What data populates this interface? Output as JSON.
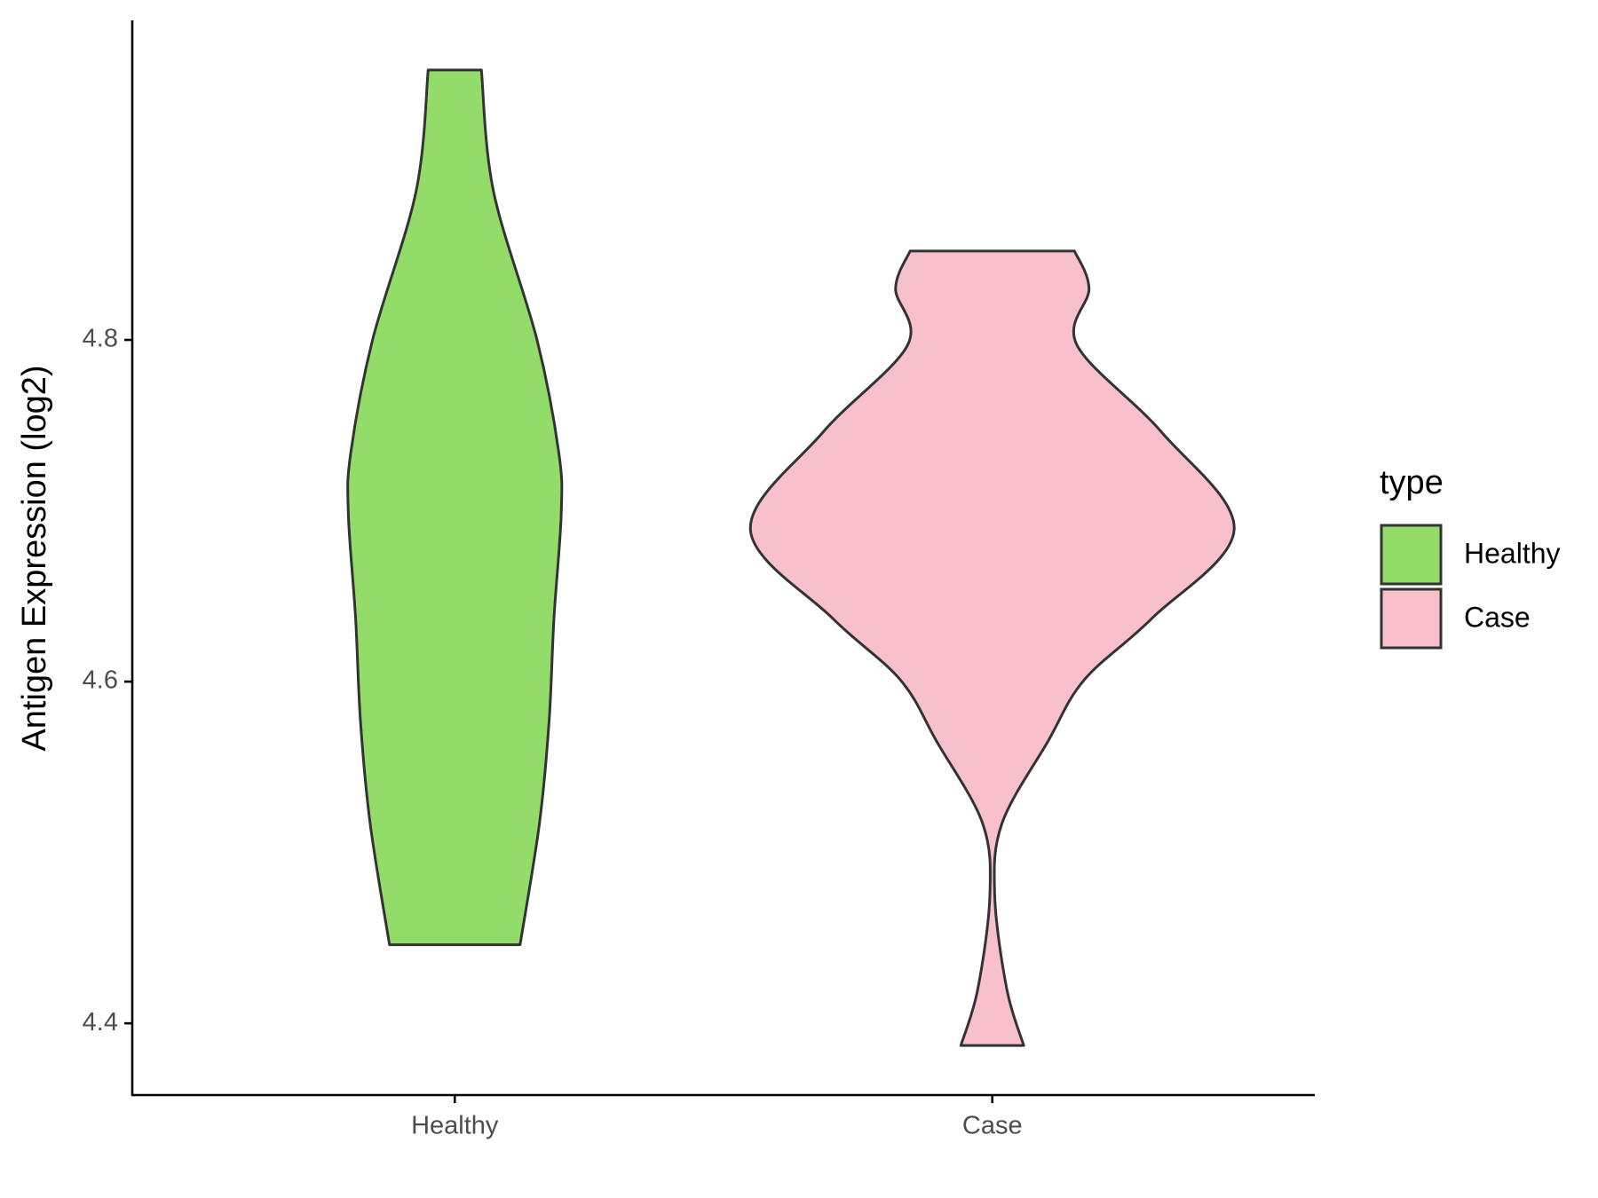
{
  "chart_data": {
    "type": "violin",
    "y_label": "Antigen Expression (log2)",
    "categories": [
      "Healthy",
      "Case"
    ],
    "legend_title": "type",
    "legend_position": "right",
    "series": [
      {
        "name": "Healthy",
        "color": "#93dc6a",
        "y": [
          4.958,
          4.887,
          4.8,
          4.734,
          4.698,
          4.637,
          4.577,
          4.517,
          4.446
        ],
        "widths": [
          0.11,
          0.16,
          0.34,
          0.43,
          0.44,
          0.41,
          0.39,
          0.35,
          0.27
        ]
      },
      {
        "name": "Case",
        "color": "#f7c0cb",
        "y": [
          4.852,
          4.83,
          4.797,
          4.746,
          4.689,
          4.637,
          4.601,
          4.565,
          4.517,
          4.475,
          4.42,
          4.387
        ],
        "widths": [
          0.34,
          0.4,
          0.35,
          0.7,
          1.0,
          0.66,
          0.38,
          0.23,
          0.04,
          0.01,
          0.06,
          0.13
        ]
      }
    ],
    "ylim": [
      4.358,
      4.987
    ],
    "yticks": [
      4.4,
      4.6,
      4.8
    ],
    "grid": false
  }
}
